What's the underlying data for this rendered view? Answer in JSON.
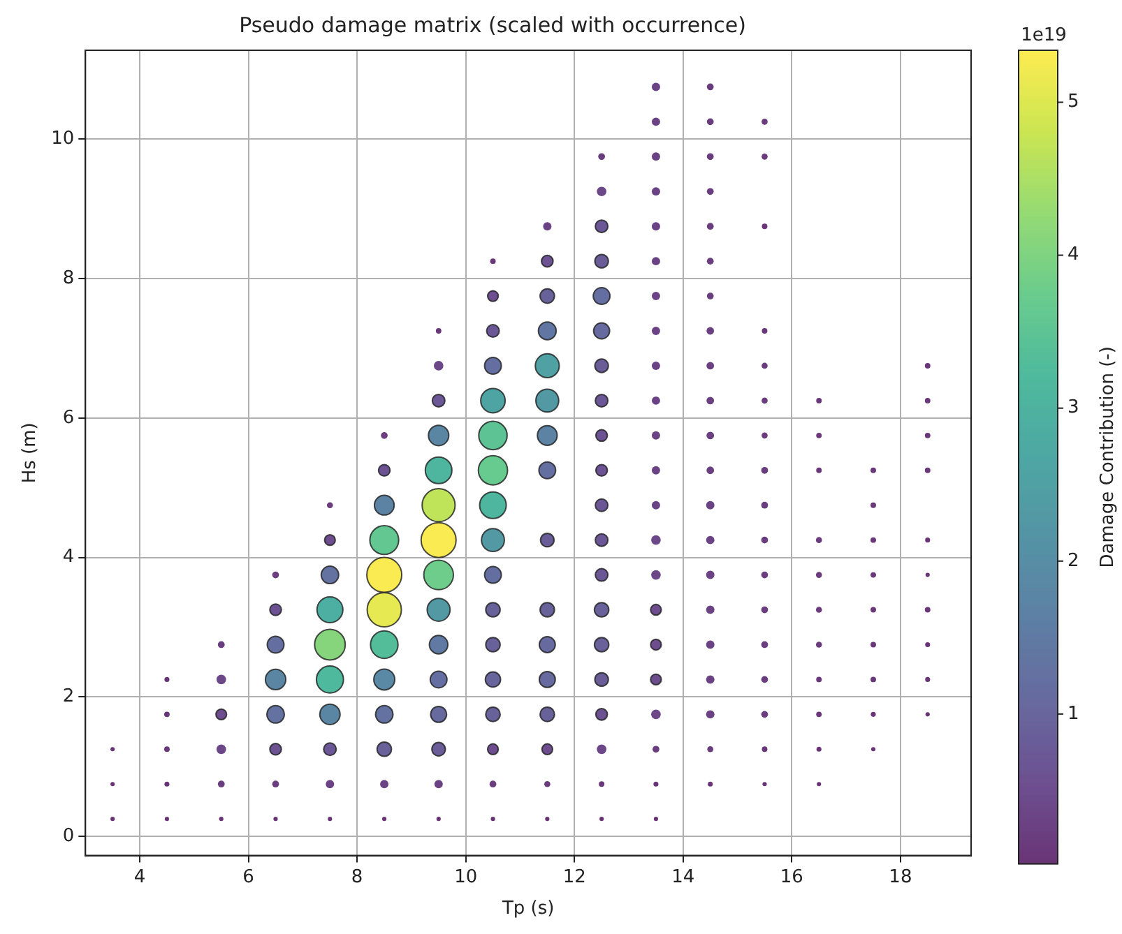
{
  "chart_data": {
    "type": "bubble",
    "title": "Pseudo damage matrix (scaled with occurrence)",
    "xlabel": "Tp (s)",
    "ylabel": "Hs (m)",
    "clabel": "Damage Contribution (-)",
    "annotations": [
      "1e19"
    ],
    "xlim": [
      3.0,
      19.3
    ],
    "ylim": [
      -0.275,
      11.275
    ],
    "xticks": [
      4,
      6,
      8,
      10,
      12,
      14,
      16,
      18
    ],
    "yticks": [
      0,
      2,
      4,
      6,
      8,
      10
    ],
    "clim": [
      0.02,
      5.34
    ],
    "cticks": [
      1,
      2,
      3,
      4,
      5
    ],
    "grid": true,
    "legend": false,
    "x": [
      3.5,
      3.5,
      3.5,
      4.5,
      4.5,
      4.5,
      4.5,
      4.5,
      5.5,
      5.5,
      5.5,
      5.5,
      5.5,
      5.5,
      6.5,
      6.5,
      6.5,
      6.5,
      6.5,
      6.5,
      6.5,
      6.5,
      7.5,
      7.5,
      7.5,
      7.5,
      7.5,
      7.5,
      7.5,
      7.5,
      7.5,
      7.5,
      8.5,
      8.5,
      8.5,
      8.5,
      8.5,
      8.5,
      8.5,
      8.5,
      8.5,
      8.5,
      8.5,
      8.5,
      9.5,
      9.5,
      9.5,
      9.5,
      9.5,
      9.5,
      9.5,
      9.5,
      9.5,
      9.5,
      9.5,
      9.5,
      9.5,
      9.5,
      9.5,
      10.5,
      10.5,
      10.5,
      10.5,
      10.5,
      10.5,
      10.5,
      10.5,
      10.5,
      10.5,
      10.5,
      10.5,
      10.5,
      10.5,
      10.5,
      10.5,
      10.5,
      11.5,
      11.5,
      11.5,
      11.5,
      11.5,
      11.5,
      11.5,
      11.5,
      11.5,
      11.5,
      11.5,
      11.5,
      11.5,
      11.5,
      11.5,
      11.5,
      12.5,
      12.5,
      12.5,
      12.5,
      12.5,
      12.5,
      12.5,
      12.5,
      12.5,
      12.5,
      12.5,
      12.5,
      12.5,
      12.5,
      12.5,
      12.5,
      12.5,
      12.5,
      12.5,
      12.5,
      13.5,
      13.5,
      13.5,
      13.5,
      13.5,
      13.5,
      13.5,
      13.5,
      13.5,
      13.5,
      13.5,
      13.5,
      13.5,
      13.5,
      13.5,
      13.5,
      13.5,
      13.5,
      13.5,
      13.5,
      13.5,
      13.5,
      14.5,
      14.5,
      14.5,
      14.5,
      14.5,
      14.5,
      14.5,
      14.5,
      14.5,
      14.5,
      14.5,
      14.5,
      14.5,
      14.5,
      14.5,
      14.5,
      14.5,
      14.5,
      14.5,
      14.5,
      14.5,
      15.5,
      15.5,
      15.5,
      15.5,
      15.5,
      15.5,
      15.5,
      15.5,
      15.5,
      15.5,
      15.5,
      15.5,
      15.5,
      15.5,
      15.5,
      15.5,
      15.5,
      16.5,
      16.5,
      16.5,
      16.5,
      16.5,
      16.5,
      16.5,
      16.5,
      16.5,
      16.5,
      16.5,
      17.5,
      17.5,
      17.5,
      17.5,
      17.5,
      17.5,
      17.5,
      17.5,
      17.5,
      18.5,
      18.5,
      18.5,
      18.5,
      18.5,
      18.5,
      18.5,
      18.5,
      18.5,
      18.5
    ],
    "values": [
      0.25,
      0.75,
      1.25,
      0.25,
      0.75,
      1.25,
      1.75,
      2.25,
      0.25,
      0.75,
      1.25,
      1.75,
      2.25,
      2.75,
      0.25,
      0.75,
      1.25,
      1.75,
      2.25,
      2.75,
      3.25,
      3.75,
      0.25,
      0.75,
      1.25,
      1.75,
      2.25,
      2.75,
      3.25,
      3.75,
      4.25,
      4.75,
      0.25,
      0.75,
      1.25,
      1.75,
      2.25,
      2.75,
      3.25,
      3.75,
      4.25,
      4.75,
      5.25,
      5.75,
      0.25,
      0.75,
      1.25,
      1.75,
      2.25,
      2.75,
      3.25,
      3.75,
      4.25,
      4.75,
      5.25,
      5.75,
      6.25,
      6.75,
      7.25,
      0.25,
      0.75,
      1.25,
      1.75,
      2.25,
      2.75,
      3.25,
      3.75,
      4.25,
      4.75,
      5.25,
      5.75,
      6.25,
      6.75,
      7.25,
      7.75,
      8.25,
      0.25,
      0.75,
      1.25,
      1.75,
      2.25,
      2.75,
      3.25,
      4.25,
      5.25,
      5.75,
      6.25,
      6.75,
      7.25,
      7.75,
      8.25,
      8.75,
      0.25,
      0.75,
      1.25,
      1.75,
      2.25,
      2.75,
      3.25,
      3.75,
      4.25,
      4.75,
      5.25,
      5.75,
      6.25,
      6.75,
      7.25,
      7.75,
      8.25,
      8.75,
      9.25,
      9.75,
      0.25,
      0.75,
      1.25,
      1.75,
      2.25,
      2.75,
      3.25,
      3.75,
      4.25,
      4.75,
      5.25,
      5.75,
      6.25,
      6.75,
      7.25,
      7.75,
      8.25,
      8.75,
      9.25,
      9.75,
      10.25,
      10.75,
      0.75,
      1.25,
      1.75,
      2.25,
      2.75,
      3.25,
      3.75,
      4.25,
      4.75,
      5.25,
      5.75,
      6.25,
      6.75,
      7.25,
      7.75,
      8.25,
      8.75,
      9.25,
      9.75,
      10.25,
      10.75,
      0.75,
      1.25,
      1.75,
      2.25,
      2.75,
      3.25,
      3.75,
      4.25,
      4.75,
      5.25,
      5.75,
      6.25,
      6.75,
      7.25,
      8.75,
      9.75,
      10.25,
      0.75,
      1.25,
      1.75,
      2.25,
      2.75,
      3.25,
      3.75,
      4.25,
      5.25,
      5.75,
      6.25,
      1.25,
      1.75,
      2.25,
      2.75,
      3.25,
      3.75,
      4.25,
      4.75,
      5.25,
      1.75,
      2.25,
      2.75,
      3.25,
      3.75,
      4.25,
      5.25,
      5.75,
      6.25,
      6.75
    ],
    "cvalues": [
      0.02,
      0.02,
      0.02,
      0.02,
      0.05,
      0.1,
      0.1,
      0.05,
      0.02,
      0.2,
      0.4,
      0.5,
      0.4,
      0.2,
      0.02,
      0.2,
      0.6,
      1.3,
      1.8,
      1.2,
      0.6,
      0.2,
      0.03,
      0.3,
      0.7,
      1.8,
      3.2,
      4.1,
      2.9,
      1.3,
      0.5,
      0.15,
      0.03,
      0.3,
      0.9,
      1.3,
      1.9,
      3.3,
      5.1,
      5.3,
      3.6,
      1.7,
      0.6,
      0.2,
      0.03,
      0.3,
      0.8,
      1.1,
      1.2,
      1.5,
      2.3,
      3.8,
      5.3,
      4.7,
      3.1,
      1.8,
      0.7,
      0.4,
      0.1,
      0.02,
      0.2,
      0.5,
      0.9,
      1.0,
      0.9,
      0.9,
      1.2,
      2.3,
      3.1,
      3.7,
      3.5,
      2.6,
      1.2,
      0.7,
      0.5,
      0.1,
      0.02,
      0.15,
      0.5,
      0.9,
      1.1,
      1.1,
      0.9,
      0.8,
      1.2,
      1.7,
      2.3,
      2.5,
      1.4,
      0.9,
      0.6,
      0.3,
      0.02,
      0.1,
      0.4,
      0.6,
      0.8,
      0.9,
      0.9,
      0.7,
      0.7,
      0.7,
      0.6,
      0.6,
      0.7,
      0.8,
      1.1,
      1.2,
      0.8,
      0.7,
      0.4,
      0.2,
      0.02,
      0.05,
      0.2,
      0.4,
      0.5,
      0.5,
      0.5,
      0.4,
      0.4,
      0.3,
      0.3,
      0.3,
      0.3,
      0.3,
      0.3,
      0.3,
      0.3,
      0.3,
      0.3,
      0.3,
      0.3,
      0.3,
      0.05,
      0.15,
      0.3,
      0.3,
      0.3,
      0.3,
      0.3,
      0.3,
      0.3,
      0.25,
      0.25,
      0.25,
      0.25,
      0.25,
      0.2,
      0.2,
      0.2,
      0.2,
      0.2,
      0.2,
      0.2,
      0.03,
      0.1,
      0.2,
      0.2,
      0.2,
      0.2,
      0.2,
      0.2,
      0.2,
      0.2,
      0.15,
      0.15,
      0.15,
      0.1,
      0.1,
      0.15,
      0.15,
      0.02,
      0.05,
      0.1,
      0.1,
      0.15,
      0.15,
      0.15,
      0.15,
      0.1,
      0.1,
      0.1,
      0.02,
      0.05,
      0.1,
      0.1,
      0.1,
      0.1,
      0.1,
      0.1,
      0.1,
      0.02,
      0.05,
      0.05,
      0.1,
      0.03,
      0.05,
      0.1,
      0.1,
      0.1,
      0.1
    ],
    "sizes": [
      0.015,
      0.015,
      0.015,
      0.015,
      0.02,
      0.025,
      0.025,
      0.02,
      0.015,
      0.038,
      0.075,
      0.094,
      0.075,
      0.038,
      0.015,
      0.038,
      0.11,
      0.25,
      0.34,
      0.23,
      0.11,
      0.038,
      0.015,
      0.057,
      0.13,
      0.34,
      0.6,
      0.77,
      0.55,
      0.25,
      0.094,
      0.03,
      0.015,
      0.057,
      0.17,
      0.25,
      0.36,
      0.62,
      0.96,
      1,
      0.68,
      0.32,
      0.11,
      0.038,
      0.015,
      0.057,
      0.15,
      0.21,
      0.23,
      0.28,
      0.43,
      0.72,
      1,
      0.89,
      0.58,
      0.34,
      0.13,
      0.075,
      0.025,
      0.015,
      0.038,
      0.094,
      0.17,
      0.19,
      0.17,
      0.17,
      0.23,
      0.43,
      0.58,
      0.7,
      0.66,
      0.49,
      0.23,
      0.13,
      0.094,
      0.025,
      0.015,
      0.03,
      0.094,
      0.17,
      0.21,
      0.21,
      0.17,
      0.15,
      0.23,
      0.32,
      0.43,
      0.47,
      0.26,
      0.17,
      0.11,
      0.057,
      0.015,
      0.025,
      0.075,
      0.11,
      0.15,
      0.17,
      0.17,
      0.13,
      0.13,
      0.13,
      0.11,
      0.11,
      0.13,
      0.15,
      0.21,
      0.23,
      0.15,
      0.13,
      0.075,
      0.038,
      0.015,
      0.02,
      0.038,
      0.075,
      0.094,
      0.094,
      0.094,
      0.075,
      0.075,
      0.057,
      0.057,
      0.057,
      0.057,
      0.057,
      0.057,
      0.057,
      0.057,
      0.057,
      0.057,
      0.057,
      0.057,
      0.057,
      0.02,
      0.03,
      0.057,
      0.057,
      0.057,
      0.057,
      0.057,
      0.057,
      0.057,
      0.047,
      0.047,
      0.047,
      0.047,
      0.047,
      0.038,
      0.038,
      0.038,
      0.038,
      0.038,
      0.038,
      0.038,
      0.015,
      0.025,
      0.038,
      0.038,
      0.038,
      0.038,
      0.038,
      0.038,
      0.038,
      0.038,
      0.03,
      0.03,
      0.03,
      0.025,
      0.025,
      0.03,
      0.03,
      0.015,
      0.02,
      0.025,
      0.025,
      0.03,
      0.03,
      0.03,
      0.03,
      0.025,
      0.025,
      0.025,
      0.015,
      0.02,
      0.025,
      0.025,
      0.025,
      0.025,
      0.025,
      0.025,
      0.025,
      0.015,
      0.02,
      0.02,
      0.025,
      0.015,
      0.02,
      0.025,
      0.025,
      0.025,
      0.025
    ]
  }
}
